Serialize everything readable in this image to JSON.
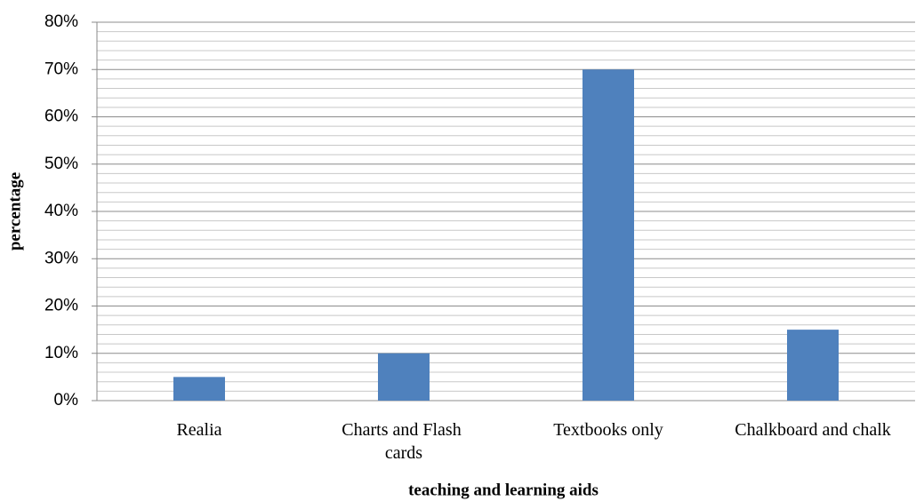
{
  "chart_data": {
    "type": "bar",
    "x_label": "teaching and learning aids",
    "y_label": "percentage",
    "categories": [
      "Realia",
      "Charts and Flash cards",
      "Textbooks only",
      "Chalkboard and chalk"
    ],
    "values": [
      5,
      10,
      70,
      15
    ],
    "color": "#4f81bd",
    "ylim": [
      0,
      80
    ],
    "yticks": [
      {
        "value": 0,
        "label": "0%"
      },
      {
        "value": 10,
        "label": "10%"
      },
      {
        "value": 20,
        "label": "20%"
      },
      {
        "value": 30,
        "label": "30%"
      },
      {
        "value": 40,
        "label": "40%"
      },
      {
        "value": 50,
        "label": "50%"
      },
      {
        "value": 60,
        "label": "60%"
      },
      {
        "value": 70,
        "label": "70%"
      },
      {
        "value": 80,
        "label": "80%"
      }
    ],
    "yticks_minor": [
      2,
      4,
      6,
      8,
      12,
      14,
      16,
      18,
      22,
      24,
      26,
      28,
      32,
      34,
      36,
      38,
      42,
      44,
      46,
      48,
      52,
      54,
      56,
      58,
      62,
      64,
      66,
      68,
      72,
      74,
      76,
      78
    ],
    "grid": true
  }
}
